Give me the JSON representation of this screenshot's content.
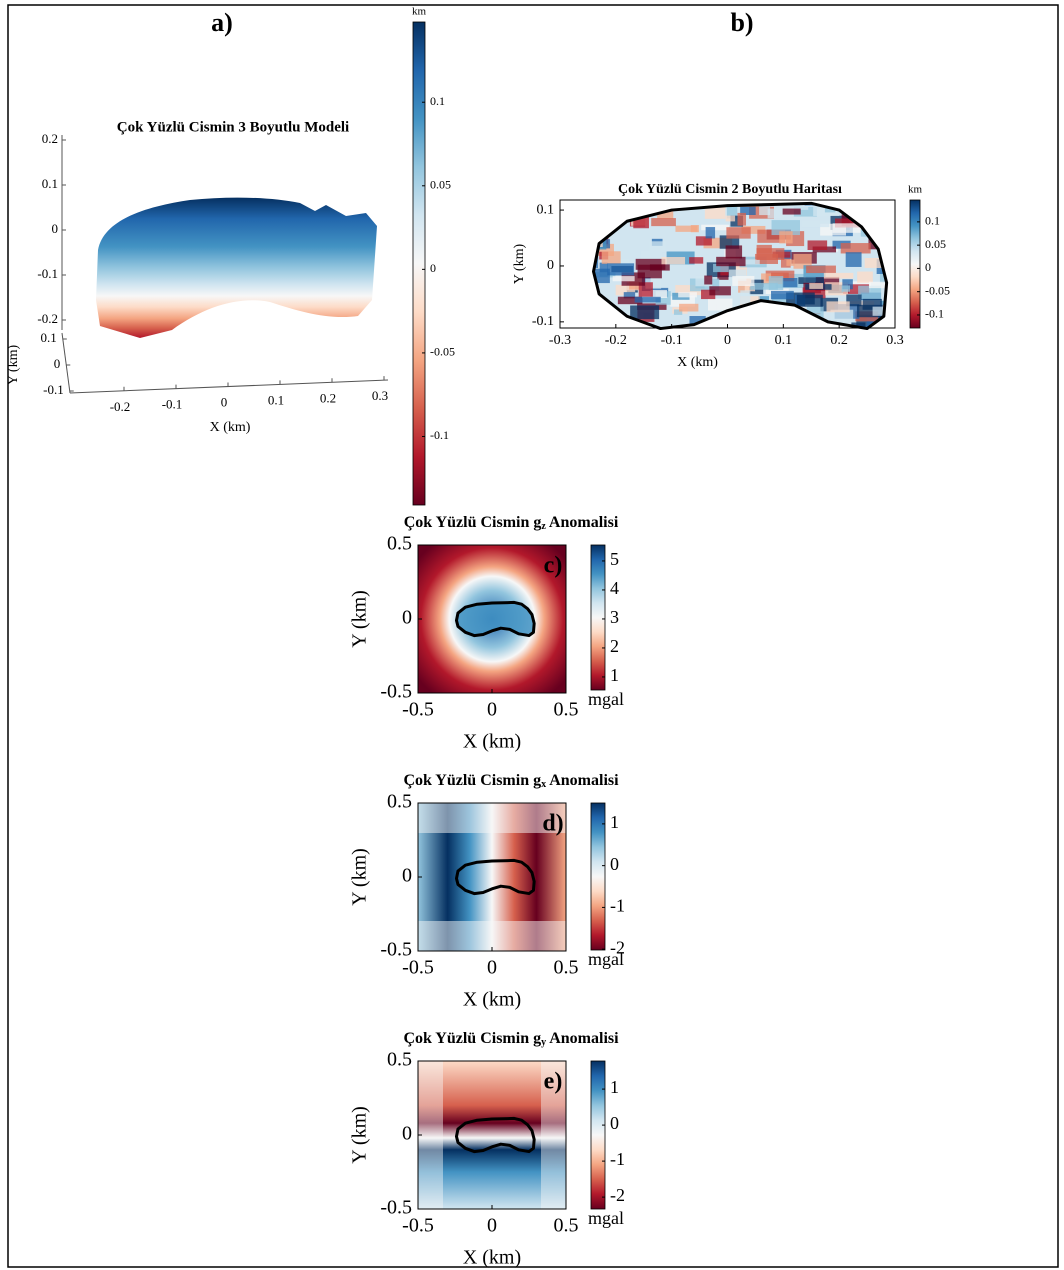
{
  "chart_data": [
    {
      "type": "surface3d",
      "panel_label": "a)",
      "title": "Çok Yüzlü Cismin 3 Boyutlu Modeli",
      "xlabel": "X (km)",
      "ylabel": "Y (km)",
      "xticks": [
        -0.2,
        -0.1,
        0,
        0.1,
        0.2,
        0.3
      ],
      "yticks": [
        -0.1,
        0,
        0.1
      ],
      "zticks": [
        -0.2,
        -0.1,
        0,
        0.1,
        0.2
      ],
      "colormap": [
        "#67001f",
        "#b2182b",
        "#d6604d",
        "#f4a582",
        "#fddbc7",
        "#f7f7f7",
        "#d1e5f0",
        "#92c5de",
        "#4393c3",
        "#2166ac",
        "#053061"
      ],
      "colorbar": {
        "label": "km",
        "lim": [
          -0.141,
          0.148
        ],
        "ticks": [
          -0.1,
          -0.05,
          0,
          0.05,
          0.1
        ]
      }
    },
    {
      "type": "heatmap",
      "panel_label": "b)",
      "title": "Çok Yüzlü Cismin 2 Boyutlu Haritası",
      "xlabel": "X (km)",
      "ylabel": "Y (km)",
      "xlim": [
        -0.3,
        0.3
      ],
      "xticks": [
        -0.3,
        -0.2,
        -0.1,
        0,
        0.1,
        0.2,
        0.3
      ],
      "ylim": [
        -0.111,
        0.118
      ],
      "yticks": [
        -0.1,
        0,
        0.1
      ],
      "colormap": [
        "#67001f",
        "#b2182b",
        "#d6604d",
        "#f4a582",
        "#fddbc7",
        "#f7f7f7",
        "#d1e5f0",
        "#92c5de",
        "#4393c3",
        "#2166ac",
        "#053061"
      ],
      "colorbar": {
        "label": "km",
        "lim": [
          -0.128,
          0.147
        ],
        "ticks": [
          -0.1,
          -0.05,
          0,
          0.05,
          0.1
        ]
      }
    },
    {
      "type": "heatmap",
      "panel_label": "c)",
      "title": [
        "Çok Yüzlü Cismin g",
        "z",
        " Anomalisi"
      ],
      "xlabel": "X (km)",
      "ylabel": "Y (km)",
      "xlim": [
        -0.5,
        0.5
      ],
      "xticks": [
        -0.5,
        0,
        0.5
      ],
      "ylim": [
        -0.5,
        0.5
      ],
      "yticks": [
        -0.5,
        0,
        0.5
      ],
      "colormap": [
        "#67001f",
        "#b2182b",
        "#d6604d",
        "#f4a582",
        "#fddbc7",
        "#f7f7f7",
        "#d1e5f0",
        "#92c5de",
        "#4393c3",
        "#2166ac",
        "#053061"
      ],
      "colorbar": {
        "label": "mgal",
        "lim": [
          0.55,
          5.55
        ],
        "ticks": [
          1,
          2,
          3,
          4,
          5
        ]
      }
    },
    {
      "type": "heatmap",
      "panel_label": "d)",
      "title": [
        "Çok Yüzlü Cismin g",
        "x",
        " Anomalisi"
      ],
      "xlabel": "X (km)",
      "ylabel": "Y (km)",
      "xlim": [
        -0.5,
        0.5
      ],
      "xticks": [
        -0.5,
        0,
        0.5
      ],
      "ylim": [
        -0.5,
        0.5
      ],
      "yticks": [
        -0.5,
        0,
        0.5
      ],
      "colormap": [
        "#67001f",
        "#b2182b",
        "#d6604d",
        "#f4a582",
        "#fddbc7",
        "#f7f7f7",
        "#d1e5f0",
        "#92c5de",
        "#4393c3",
        "#2166ac",
        "#053061"
      ],
      "colorbar": {
        "label": "mgal",
        "lim": [
          -2.02,
          1.5
        ],
        "ticks": [
          -2,
          -1,
          0,
          1
        ]
      }
    },
    {
      "type": "heatmap",
      "panel_label": "e)",
      "title": [
        "Çok Yüzlü Cismin g",
        "y",
        " Anomalisi"
      ],
      "xlabel": "X (km)",
      "ylabel": "Y (km)",
      "xlim": [
        -0.5,
        0.5
      ],
      "xticks": [
        -0.5,
        0,
        0.5
      ],
      "ylim": [
        -0.5,
        0.5
      ],
      "yticks": [
        -0.5,
        0,
        0.5
      ],
      "colormap": [
        "#67001f",
        "#b2182b",
        "#d6604d",
        "#f4a582",
        "#fddbc7",
        "#f7f7f7",
        "#d1e5f0",
        "#92c5de",
        "#4393c3",
        "#2166ac",
        "#053061"
      ],
      "colorbar": {
        "label": "mgal",
        "lim": [
          -2.33,
          1.78
        ],
        "ticks": [
          -2,
          -1,
          0,
          1
        ]
      }
    }
  ]
}
